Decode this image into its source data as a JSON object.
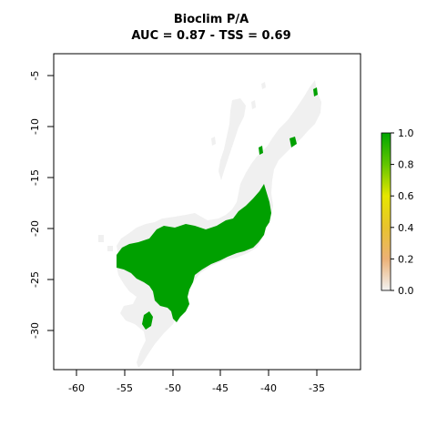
{
  "title": "Bioclim P/A",
  "subtitle": "AUC = 0.87 - TSS = 0.69",
  "map": {
    "x_range": [
      -63,
      -30
    ],
    "y_range": [
      -34,
      -3
    ],
    "x_ticks": [
      "-60",
      "-55",
      "-50",
      "-45",
      "-40",
      "-35"
    ],
    "y_ticks": [
      "-5",
      "-10",
      "-15",
      "-20",
      "-25",
      "-30"
    ],
    "background_region_color": "#f0f0f0",
    "presence_color": "#00a000"
  },
  "legend": {
    "ticks": [
      "1.0",
      "0.8",
      "0.6",
      "0.4",
      "0.2",
      "0.0"
    ],
    "range": [
      0,
      1
    ],
    "gradient_stops": [
      "#00a600",
      "#63c600",
      "#e6e600",
      "#e8c32e",
      "#ecb176",
      "#f2f2f2"
    ]
  },
  "chart_data": {
    "type": "heatmap",
    "title": "Bioclim P/A",
    "subtitle": "AUC = 0.87 - TSS = 0.69",
    "xlim": [
      -63,
      -30
    ],
    "ylim": [
      -34,
      -3
    ],
    "x_ticks": [
      -60,
      -55,
      -50,
      -45,
      -40,
      -35
    ],
    "y_ticks": [
      -5,
      -10,
      -15,
      -20,
      -25,
      -30
    ],
    "colorbar": {
      "min": 0,
      "max": 1,
      "ticks": [
        0.0,
        0.2,
        0.4,
        0.6,
        0.8,
        1.0
      ]
    },
    "values_present": [
      0,
      1
    ]
  }
}
